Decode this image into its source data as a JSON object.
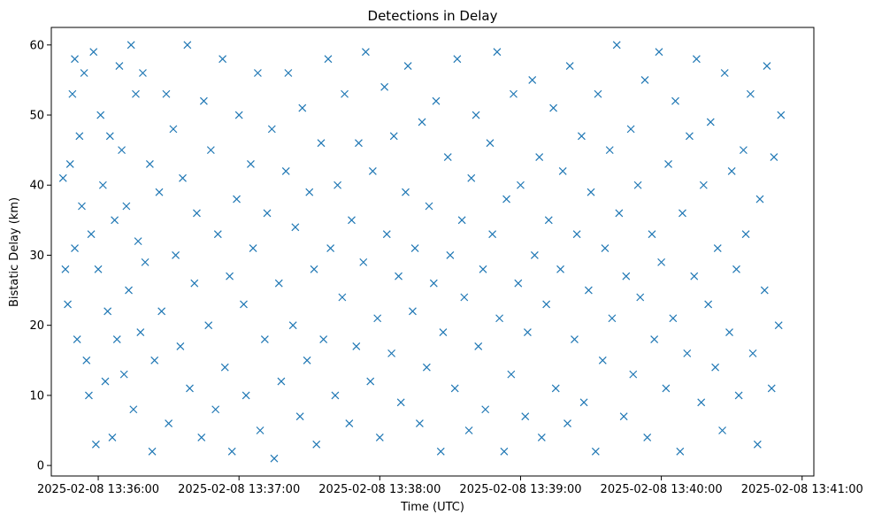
{
  "chart_data": {
    "type": "scatter",
    "title": "Detections in Delay",
    "xlabel": "Time (UTC)",
    "ylabel": "Bistatic Delay (km)",
    "x_ticks": [
      "2025-02-08 13:36:00",
      "2025-02-08 13:37:00",
      "2025-02-08 13:38:00",
      "2025-02-08 13:39:00",
      "2025-02-08 13:40:00",
      "2025-02-08 13:41:00"
    ],
    "y_ticks": [
      0,
      10,
      20,
      30,
      40,
      50,
      60
    ],
    "xlim": [
      "2025-02-08 13:35:40",
      "2025-02-08 13:41:05"
    ],
    "ylim": [
      -1.5,
      62.5
    ],
    "marker": "x",
    "color": "#1f77b4",
    "grid": false,
    "series": [
      {
        "name": "",
        "points": [
          [
            "2025-02-08 13:35:45",
            41
          ],
          [
            "2025-02-08 13:35:46",
            28
          ],
          [
            "2025-02-08 13:35:47",
            23
          ],
          [
            "2025-02-08 13:35:48",
            43
          ],
          [
            "2025-02-08 13:35:49",
            53
          ],
          [
            "2025-02-08 13:35:50",
            58
          ],
          [
            "2025-02-08 13:35:50",
            31
          ],
          [
            "2025-02-08 13:35:51",
            18
          ],
          [
            "2025-02-08 13:35:52",
            47
          ],
          [
            "2025-02-08 13:35:53",
            37
          ],
          [
            "2025-02-08 13:35:54",
            56
          ],
          [
            "2025-02-08 13:35:55",
            15
          ],
          [
            "2025-02-08 13:35:56",
            10
          ],
          [
            "2025-02-08 13:35:57",
            33
          ],
          [
            "2025-02-08 13:35:58",
            59
          ],
          [
            "2025-02-08 13:35:59",
            3
          ],
          [
            "2025-02-08 13:36:00",
            28
          ],
          [
            "2025-02-08 13:36:01",
            50
          ],
          [
            "2025-02-08 13:36:02",
            40
          ],
          [
            "2025-02-08 13:36:03",
            12
          ],
          [
            "2025-02-08 13:36:04",
            22
          ],
          [
            "2025-02-08 13:36:05",
            47
          ],
          [
            "2025-02-08 13:36:06",
            4
          ],
          [
            "2025-02-08 13:36:07",
            35
          ],
          [
            "2025-02-08 13:36:08",
            18
          ],
          [
            "2025-02-08 13:36:09",
            57
          ],
          [
            "2025-02-08 13:36:10",
            45
          ],
          [
            "2025-02-08 13:36:11",
            13
          ],
          [
            "2025-02-08 13:36:12",
            37
          ],
          [
            "2025-02-08 13:36:13",
            25
          ],
          [
            "2025-02-08 13:36:14",
            60
          ],
          [
            "2025-02-08 13:36:15",
            8
          ],
          [
            "2025-02-08 13:36:16",
            53
          ],
          [
            "2025-02-08 13:36:17",
            32
          ],
          [
            "2025-02-08 13:36:18",
            19
          ],
          [
            "2025-02-08 13:36:19",
            56
          ],
          [
            "2025-02-08 13:36:20",
            29
          ],
          [
            "2025-02-08 13:36:22",
            43
          ],
          [
            "2025-02-08 13:36:23",
            2
          ],
          [
            "2025-02-08 13:36:24",
            15
          ],
          [
            "2025-02-08 13:36:26",
            39
          ],
          [
            "2025-02-08 13:36:27",
            22
          ],
          [
            "2025-02-08 13:36:29",
            53
          ],
          [
            "2025-02-08 13:36:30",
            6
          ],
          [
            "2025-02-08 13:36:32",
            48
          ],
          [
            "2025-02-08 13:36:33",
            30
          ],
          [
            "2025-02-08 13:36:35",
            17
          ],
          [
            "2025-02-08 13:36:36",
            41
          ],
          [
            "2025-02-08 13:36:38",
            60
          ],
          [
            "2025-02-08 13:36:39",
            11
          ],
          [
            "2025-02-08 13:36:41",
            26
          ],
          [
            "2025-02-08 13:36:42",
            36
          ],
          [
            "2025-02-08 13:36:44",
            4
          ],
          [
            "2025-02-08 13:36:45",
            52
          ],
          [
            "2025-02-08 13:36:47",
            20
          ],
          [
            "2025-02-08 13:36:48",
            45
          ],
          [
            "2025-02-08 13:36:50",
            8
          ],
          [
            "2025-02-08 13:36:51",
            33
          ],
          [
            "2025-02-08 13:36:53",
            58
          ],
          [
            "2025-02-08 13:36:54",
            14
          ],
          [
            "2025-02-08 13:36:56",
            27
          ],
          [
            "2025-02-08 13:36:57",
            2
          ],
          [
            "2025-02-08 13:36:59",
            38
          ],
          [
            "2025-02-08 13:37:00",
            50
          ],
          [
            "2025-02-08 13:37:02",
            23
          ],
          [
            "2025-02-08 13:37:03",
            10
          ],
          [
            "2025-02-08 13:37:05",
            43
          ],
          [
            "2025-02-08 13:37:06",
            31
          ],
          [
            "2025-02-08 13:37:08",
            56
          ],
          [
            "2025-02-08 13:37:09",
            5
          ],
          [
            "2025-02-08 13:37:11",
            18
          ],
          [
            "2025-02-08 13:37:12",
            36
          ],
          [
            "2025-02-08 13:37:14",
            48
          ],
          [
            "2025-02-08 13:37:15",
            1
          ],
          [
            "2025-02-08 13:37:17",
            26
          ],
          [
            "2025-02-08 13:37:18",
            12
          ],
          [
            "2025-02-08 13:37:20",
            42
          ],
          [
            "2025-02-08 13:37:21",
            56
          ],
          [
            "2025-02-08 13:37:23",
            20
          ],
          [
            "2025-02-08 13:37:24",
            34
          ],
          [
            "2025-02-08 13:37:26",
            7
          ],
          [
            "2025-02-08 13:37:27",
            51
          ],
          [
            "2025-02-08 13:37:29",
            15
          ],
          [
            "2025-02-08 13:37:30",
            39
          ],
          [
            "2025-02-08 13:37:32",
            28
          ],
          [
            "2025-02-08 13:37:33",
            3
          ],
          [
            "2025-02-08 13:37:35",
            46
          ],
          [
            "2025-02-08 13:37:36",
            18
          ],
          [
            "2025-02-08 13:37:38",
            58
          ],
          [
            "2025-02-08 13:37:39",
            31
          ],
          [
            "2025-02-08 13:37:41",
            10
          ],
          [
            "2025-02-08 13:37:42",
            40
          ],
          [
            "2025-02-08 13:37:44",
            24
          ],
          [
            "2025-02-08 13:37:45",
            53
          ],
          [
            "2025-02-08 13:37:47",
            6
          ],
          [
            "2025-02-08 13:37:48",
            35
          ],
          [
            "2025-02-08 13:37:50",
            17
          ],
          [
            "2025-02-08 13:37:51",
            46
          ],
          [
            "2025-02-08 13:37:53",
            29
          ],
          [
            "2025-02-08 13:37:54",
            59
          ],
          [
            "2025-02-08 13:37:56",
            12
          ],
          [
            "2025-02-08 13:37:57",
            42
          ],
          [
            "2025-02-08 13:37:59",
            21
          ],
          [
            "2025-02-08 13:38:00",
            4
          ],
          [
            "2025-02-08 13:38:02",
            54
          ],
          [
            "2025-02-08 13:38:03",
            33
          ],
          [
            "2025-02-08 13:38:05",
            16
          ],
          [
            "2025-02-08 13:38:06",
            47
          ],
          [
            "2025-02-08 13:38:08",
            27
          ],
          [
            "2025-02-08 13:38:09",
            9
          ],
          [
            "2025-02-08 13:38:11",
            39
          ],
          [
            "2025-02-08 13:38:12",
            57
          ],
          [
            "2025-02-08 13:38:14",
            22
          ],
          [
            "2025-02-08 13:38:15",
            31
          ],
          [
            "2025-02-08 13:38:17",
            6
          ],
          [
            "2025-02-08 13:38:18",
            49
          ],
          [
            "2025-02-08 13:38:20",
            14
          ],
          [
            "2025-02-08 13:38:21",
            37
          ],
          [
            "2025-02-08 13:38:23",
            26
          ],
          [
            "2025-02-08 13:38:24",
            52
          ],
          [
            "2025-02-08 13:38:26",
            2
          ],
          [
            "2025-02-08 13:38:27",
            19
          ],
          [
            "2025-02-08 13:38:29",
            44
          ],
          [
            "2025-02-08 13:38:30",
            30
          ],
          [
            "2025-02-08 13:38:32",
            11
          ],
          [
            "2025-02-08 13:38:33",
            58
          ],
          [
            "2025-02-08 13:38:35",
            35
          ],
          [
            "2025-02-08 13:38:36",
            24
          ],
          [
            "2025-02-08 13:38:38",
            5
          ],
          [
            "2025-02-08 13:38:39",
            41
          ],
          [
            "2025-02-08 13:38:41",
            50
          ],
          [
            "2025-02-08 13:38:42",
            17
          ],
          [
            "2025-02-08 13:38:44",
            28
          ],
          [
            "2025-02-08 13:38:45",
            8
          ],
          [
            "2025-02-08 13:38:47",
            46
          ],
          [
            "2025-02-08 13:38:48",
            33
          ],
          [
            "2025-02-08 13:38:50",
            59
          ],
          [
            "2025-02-08 13:38:51",
            21
          ],
          [
            "2025-02-08 13:38:53",
            2
          ],
          [
            "2025-02-08 13:38:54",
            38
          ],
          [
            "2025-02-08 13:38:56",
            13
          ],
          [
            "2025-02-08 13:38:57",
            53
          ],
          [
            "2025-02-08 13:38:59",
            26
          ],
          [
            "2025-02-08 13:39:00",
            40
          ],
          [
            "2025-02-08 13:39:02",
            7
          ],
          [
            "2025-02-08 13:39:03",
            19
          ],
          [
            "2025-02-08 13:39:05",
            55
          ],
          [
            "2025-02-08 13:39:06",
            30
          ],
          [
            "2025-02-08 13:39:08",
            44
          ],
          [
            "2025-02-08 13:39:09",
            4
          ],
          [
            "2025-02-08 13:39:11",
            23
          ],
          [
            "2025-02-08 13:39:12",
            35
          ],
          [
            "2025-02-08 13:39:14",
            51
          ],
          [
            "2025-02-08 13:39:15",
            11
          ],
          [
            "2025-02-08 13:39:17",
            28
          ],
          [
            "2025-02-08 13:39:18",
            42
          ],
          [
            "2025-02-08 13:39:20",
            6
          ],
          [
            "2025-02-08 13:39:21",
            57
          ],
          [
            "2025-02-08 13:39:23",
            18
          ],
          [
            "2025-02-08 13:39:24",
            33
          ],
          [
            "2025-02-08 13:39:26",
            47
          ],
          [
            "2025-02-08 13:39:27",
            9
          ],
          [
            "2025-02-08 13:39:29",
            25
          ],
          [
            "2025-02-08 13:39:30",
            39
          ],
          [
            "2025-02-08 13:39:32",
            2
          ],
          [
            "2025-02-08 13:39:33",
            53
          ],
          [
            "2025-02-08 13:39:35",
            15
          ],
          [
            "2025-02-08 13:39:36",
            31
          ],
          [
            "2025-02-08 13:39:38",
            45
          ],
          [
            "2025-02-08 13:39:39",
            21
          ],
          [
            "2025-02-08 13:39:41",
            60
          ],
          [
            "2025-02-08 13:39:42",
            36
          ],
          [
            "2025-02-08 13:39:44",
            7
          ],
          [
            "2025-02-08 13:39:45",
            27
          ],
          [
            "2025-02-08 13:39:47",
            48
          ],
          [
            "2025-02-08 13:39:48",
            13
          ],
          [
            "2025-02-08 13:39:50",
            40
          ],
          [
            "2025-02-08 13:39:51",
            24
          ],
          [
            "2025-02-08 13:39:53",
            55
          ],
          [
            "2025-02-08 13:39:54",
            4
          ],
          [
            "2025-02-08 13:39:56",
            33
          ],
          [
            "2025-02-08 13:39:57",
            18
          ],
          [
            "2025-02-08 13:39:59",
            59
          ],
          [
            "2025-02-08 13:40:00",
            29
          ],
          [
            "2025-02-08 13:40:02",
            11
          ],
          [
            "2025-02-08 13:40:03",
            43
          ],
          [
            "2025-02-08 13:40:05",
            21
          ],
          [
            "2025-02-08 13:40:06",
            52
          ],
          [
            "2025-02-08 13:40:08",
            2
          ],
          [
            "2025-02-08 13:40:09",
            36
          ],
          [
            "2025-02-08 13:40:11",
            16
          ],
          [
            "2025-02-08 13:40:12",
            47
          ],
          [
            "2025-02-08 13:40:14",
            27
          ],
          [
            "2025-02-08 13:40:15",
            58
          ],
          [
            "2025-02-08 13:40:17",
            9
          ],
          [
            "2025-02-08 13:40:18",
            40
          ],
          [
            "2025-02-08 13:40:20",
            23
          ],
          [
            "2025-02-08 13:40:21",
            49
          ],
          [
            "2025-02-08 13:40:23",
            14
          ],
          [
            "2025-02-08 13:40:24",
            31
          ],
          [
            "2025-02-08 13:40:26",
            5
          ],
          [
            "2025-02-08 13:40:27",
            56
          ],
          [
            "2025-02-08 13:40:29",
            19
          ],
          [
            "2025-02-08 13:40:30",
            42
          ],
          [
            "2025-02-08 13:40:32",
            28
          ],
          [
            "2025-02-08 13:40:33",
            10
          ],
          [
            "2025-02-08 13:40:35",
            45
          ],
          [
            "2025-02-08 13:40:36",
            33
          ],
          [
            "2025-02-08 13:40:38",
            53
          ],
          [
            "2025-02-08 13:40:39",
            16
          ],
          [
            "2025-02-08 13:40:41",
            3
          ],
          [
            "2025-02-08 13:40:42",
            38
          ],
          [
            "2025-02-08 13:40:44",
            25
          ],
          [
            "2025-02-08 13:40:45",
            57
          ],
          [
            "2025-02-08 13:40:47",
            11
          ],
          [
            "2025-02-08 13:40:48",
            44
          ],
          [
            "2025-02-08 13:40:50",
            20
          ],
          [
            "2025-02-08 13:40:51",
            50
          ]
        ]
      }
    ]
  }
}
